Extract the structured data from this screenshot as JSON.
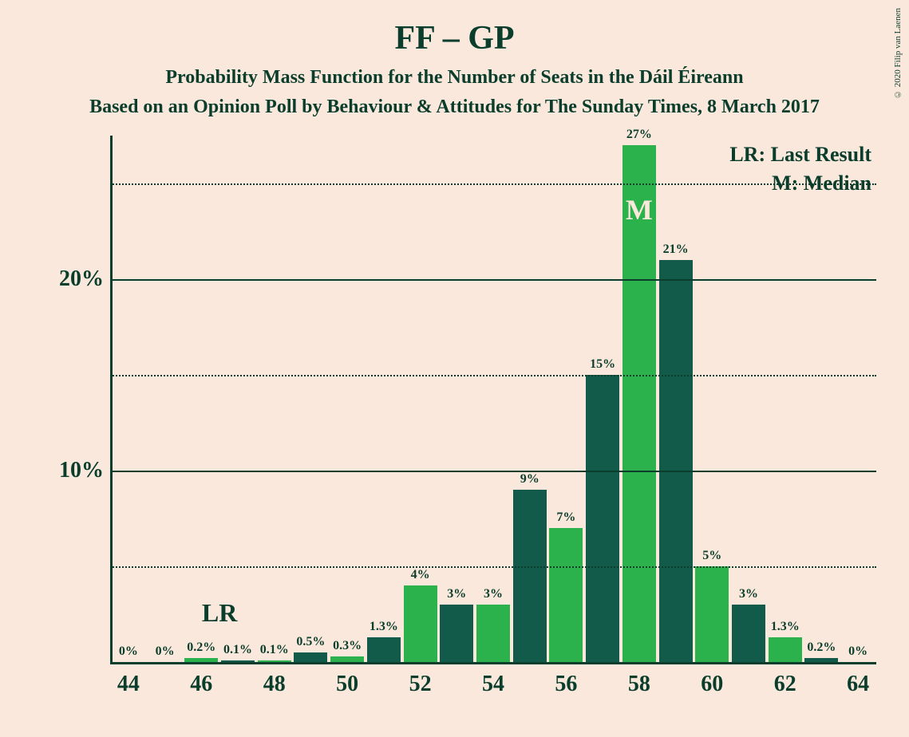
{
  "copyright": "© 2020 Filip van Laenen",
  "titles": {
    "main": "FF – GP",
    "subtitle": "Probability Mass Function for the Number of Seats in the Dáil Éireann",
    "poll": "Based on an Opinion Poll by Behaviour & Attitudes for The Sunday Times, 8 March 2017"
  },
  "legend": {
    "lr": "LR: Last Result",
    "m": "M: Median"
  },
  "chart": {
    "type": "bar",
    "background_color": "#fae8dc",
    "axis_color": "#0a3d2b",
    "text_color": "#0a3d2b",
    "colors": {
      "dark": "#125a49",
      "light": "#2bb24c"
    },
    "ylim": [
      0,
      27.5
    ],
    "y_gridlines": [
      {
        "value": 5,
        "style": "dotted",
        "label": null
      },
      {
        "value": 10,
        "style": "solid",
        "label": "10%"
      },
      {
        "value": 15,
        "style": "dotted",
        "label": null
      },
      {
        "value": 20,
        "style": "solid",
        "label": "20%"
      },
      {
        "value": 25,
        "style": "dotted",
        "label": null
      }
    ],
    "x_range": [
      44,
      64
    ],
    "x_tick_step": 2,
    "x_ticks": [
      44,
      46,
      48,
      50,
      52,
      54,
      56,
      58,
      60,
      62,
      64
    ],
    "bar_width_ratio": 0.92,
    "lr_position": 46,
    "median_position": 58,
    "bars": [
      {
        "x": 44,
        "value": 0,
        "label": "0%",
        "color": "light"
      },
      {
        "x": 45,
        "value": 0,
        "label": "0%",
        "color": "dark"
      },
      {
        "x": 46,
        "value": 0.2,
        "label": "0.2%",
        "color": "light"
      },
      {
        "x": 47,
        "value": 0.1,
        "label": "0.1%",
        "color": "dark"
      },
      {
        "x": 48,
        "value": 0.1,
        "label": "0.1%",
        "color": "light"
      },
      {
        "x": 49,
        "value": 0.5,
        "label": "0.5%",
        "color": "dark"
      },
      {
        "x": 50,
        "value": 0.3,
        "label": "0.3%",
        "color": "light"
      },
      {
        "x": 51,
        "value": 1.3,
        "label": "1.3%",
        "color": "dark"
      },
      {
        "x": 52,
        "value": 4,
        "label": "4%",
        "color": "light"
      },
      {
        "x": 53,
        "value": 3,
        "label": "3%",
        "color": "dark"
      },
      {
        "x": 54,
        "value": 3,
        "label": "3%",
        "color": "light"
      },
      {
        "x": 55,
        "value": 9,
        "label": "9%",
        "color": "dark"
      },
      {
        "x": 56,
        "value": 7,
        "label": "7%",
        "color": "light"
      },
      {
        "x": 57,
        "value": 15,
        "label": "15%",
        "color": "dark"
      },
      {
        "x": 58,
        "value": 27,
        "label": "27%",
        "color": "light"
      },
      {
        "x": 59,
        "value": 21,
        "label": "21%",
        "color": "dark"
      },
      {
        "x": 60,
        "value": 5,
        "label": "5%",
        "color": "light"
      },
      {
        "x": 61,
        "value": 3,
        "label": "3%",
        "color": "dark"
      },
      {
        "x": 62,
        "value": 1.3,
        "label": "1.3%",
        "color": "light"
      },
      {
        "x": 63,
        "value": 0.2,
        "label": "0.2%",
        "color": "dark"
      },
      {
        "x": 64,
        "value": 0,
        "label": "0%",
        "color": "light"
      }
    ]
  }
}
